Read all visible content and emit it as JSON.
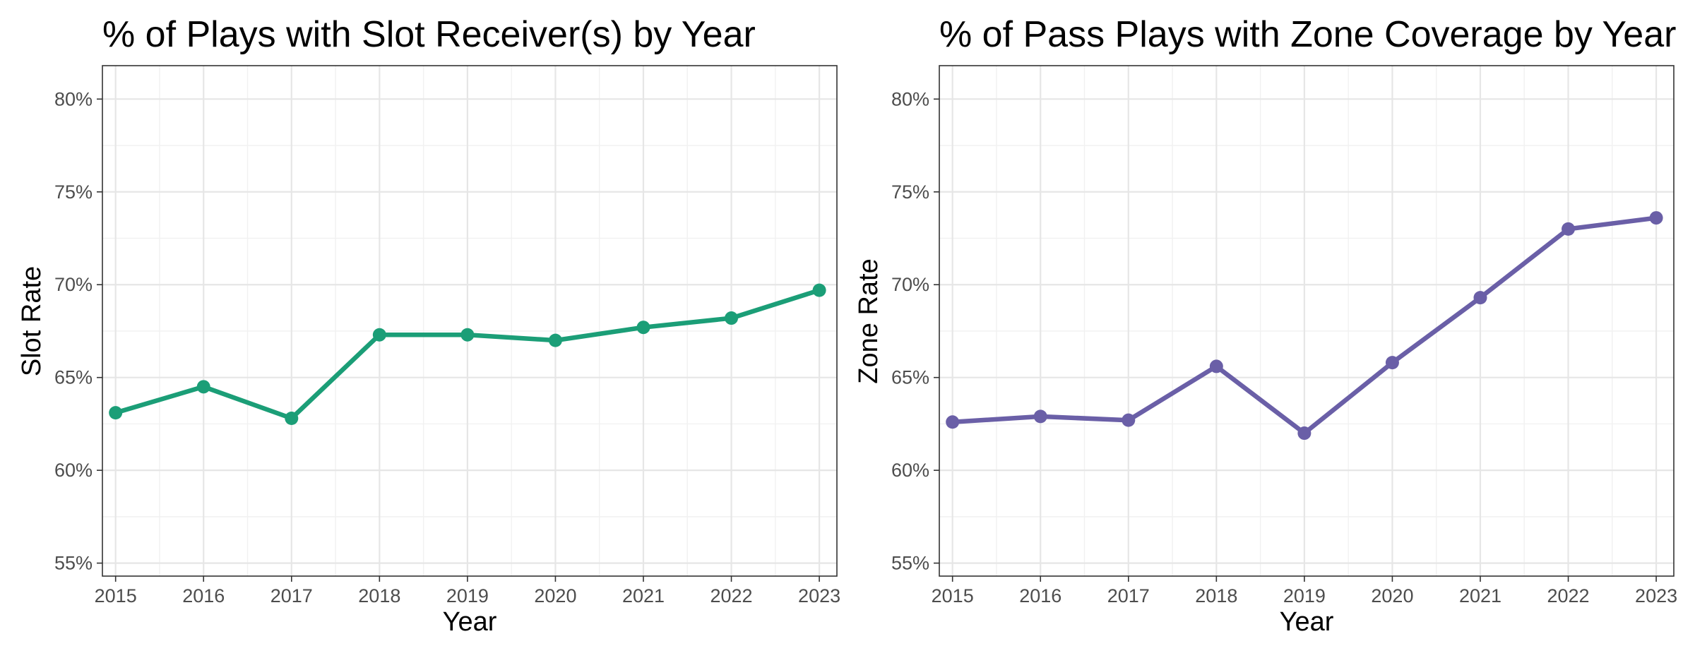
{
  "chart_data": [
    {
      "type": "line",
      "title": "% of Plays with Slot Receiver(s) by Year",
      "xlabel": "Year",
      "ylabel": "Slot Rate",
      "x": [
        2015,
        2016,
        2017,
        2018,
        2019,
        2020,
        2021,
        2022,
        2023
      ],
      "x_tick_labels": [
        "2015",
        "2016",
        "2017",
        "2018",
        "2019",
        "2020",
        "2021",
        "2022",
        "2023"
      ],
      "values": [
        63.1,
        64.5,
        62.8,
        67.3,
        67.3,
        67.0,
        67.7,
        68.2,
        69.7
      ],
      "y_ticks": [
        55,
        60,
        65,
        70,
        75,
        80
      ],
      "y_tick_labels": [
        "55%",
        "60%",
        "65%",
        "70%",
        "75%",
        "80%"
      ],
      "ylim": [
        54.3,
        81.8
      ],
      "xlim": [
        2014.85,
        2023.2
      ],
      "grid": true,
      "color": "#1b9e77"
    },
    {
      "type": "line",
      "title": "% of Pass Plays with Zone Coverage by Year",
      "xlabel": "Year",
      "ylabel": "Zone Rate",
      "x": [
        2015,
        2016,
        2017,
        2018,
        2019,
        2020,
        2021,
        2022,
        2023
      ],
      "x_tick_labels": [
        "2015",
        "2016",
        "2017",
        "2018",
        "2019",
        "2020",
        "2021",
        "2022",
        "2023"
      ],
      "values": [
        62.6,
        62.9,
        62.7,
        65.6,
        62.0,
        65.8,
        69.3,
        73.0,
        73.6
      ],
      "y_ticks": [
        55,
        60,
        65,
        70,
        75,
        80
      ],
      "y_tick_labels": [
        "55%",
        "60%",
        "65%",
        "70%",
        "75%",
        "80%"
      ],
      "ylim": [
        54.3,
        81.8
      ],
      "xlim": [
        2014.85,
        2023.2
      ],
      "grid": true,
      "color": "#6a5fa7"
    }
  ]
}
